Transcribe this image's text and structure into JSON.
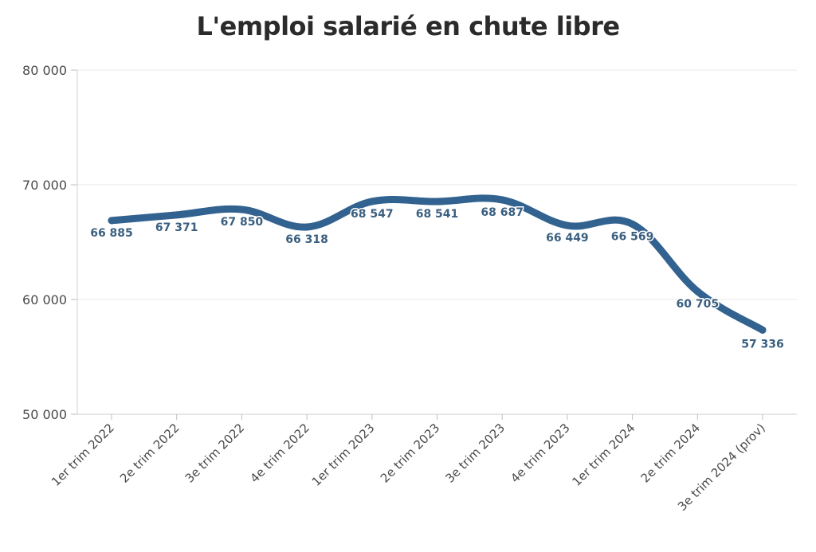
{
  "chart_data": {
    "type": "line",
    "title": "L'emploi salarié en chute libre",
    "xlabel": "",
    "ylabel": "",
    "categories": [
      "1er trim 2022",
      "2e trim 2022",
      "3e trim 2022",
      "4e trim 2022",
      "1er trim 2023",
      "2e trim 2023",
      "3e trim 2023",
      "4e trim 2023",
      "1er trim 2024",
      "2e trim 2024",
      "3e trim 2024 (prov)"
    ],
    "values": [
      66885,
      67371,
      67850,
      66318,
      68547,
      68541,
      68687,
      66449,
      66569,
      60705,
      57336
    ],
    "data_labels": [
      "66 885",
      "67 371",
      "67 850",
      "66 318",
      "68 547",
      "68 541",
      "68 687",
      "66 449",
      "66 569",
      "60 705",
      "57 336"
    ],
    "ylim": [
      50000,
      80000
    ],
    "yticks": [
      50000,
      60000,
      70000,
      80000
    ],
    "ytick_labels": [
      "50 000",
      "60 000",
      "70 000",
      "80 000"
    ],
    "grid": true,
    "legend": "none",
    "line_color": "#32628f"
  }
}
